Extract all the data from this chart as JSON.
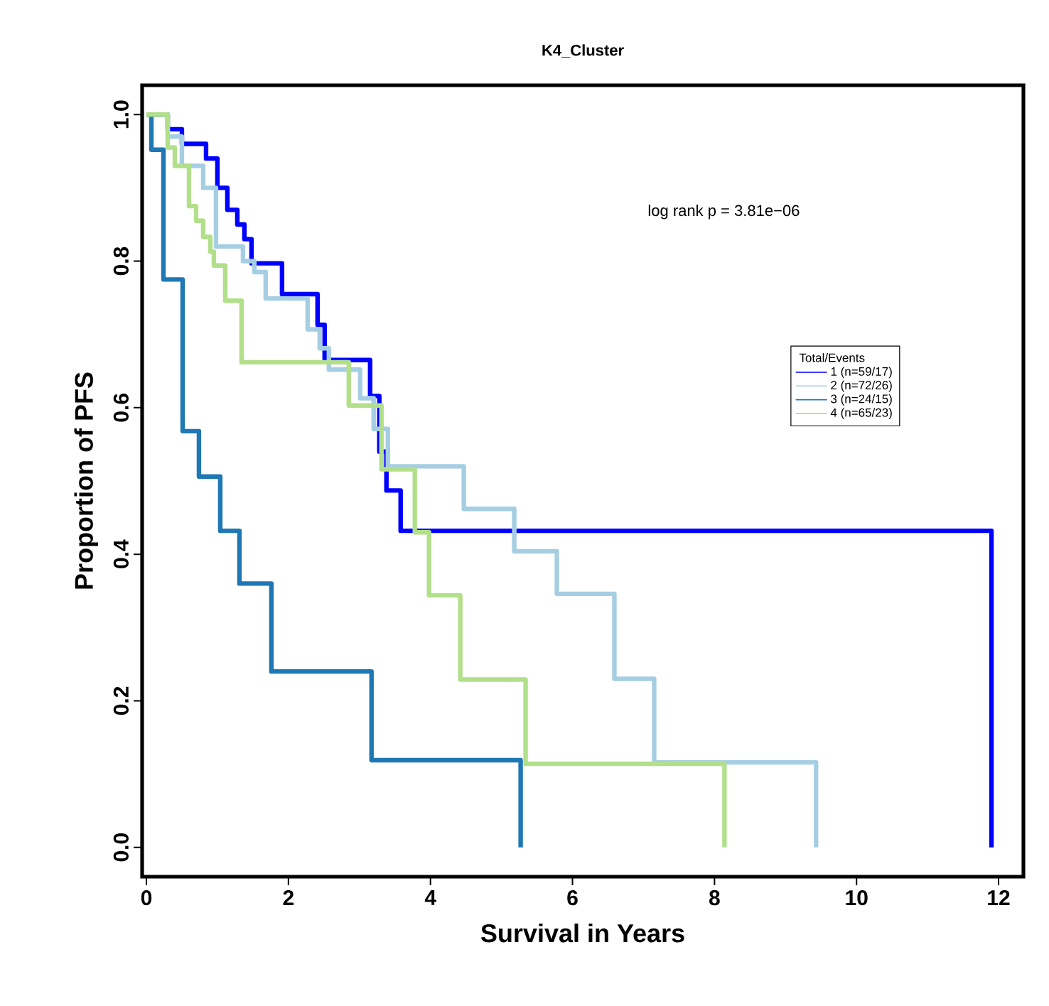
{
  "chart_data": {
    "type": "step",
    "title": "K4_Cluster",
    "xlabel": "Survival in Years",
    "ylabel": "Proportion of PFS",
    "legend_title": "Total/Events",
    "legend": "right",
    "annotations": [
      "log rank p = 3.81e−06"
    ],
    "xlim": [
      -0.06,
      12.35
    ],
    "ylim": [
      -0.04,
      1.04
    ],
    "xticks": [
      0,
      2,
      4,
      6,
      8,
      10,
      12
    ],
    "yticks": [
      {
        "value": 0,
        "label": "0.0"
      },
      {
        "value": 0.2,
        "label": "0.2"
      },
      {
        "value": 0.4,
        "label": "0.4"
      },
      {
        "value": 0.6,
        "label": "0.6"
      },
      {
        "value": 0.8,
        "label": "0.8"
      },
      {
        "value": 1,
        "label": "1.0"
      }
    ],
    "series": [
      {
        "name": "1 (n=59/17)",
        "color": "#0000ff",
        "x": [
          0,
          0.3,
          0.5,
          0.84,
          1.0,
          1.14,
          1.28,
          1.38,
          1.48,
          1.91,
          2.41,
          2.51,
          3.15,
          3.28,
          3.38,
          3.58,
          11.9
        ],
        "values": [
          1,
          0.98,
          0.96,
          0.94,
          0.9,
          0.87,
          0.85,
          0.83,
          0.797,
          0.755,
          0.713,
          0.665,
          0.616,
          0.54,
          0.487,
          0.432,
          0
        ]
      },
      {
        "name": "2 (n=72/26)",
        "color": "#a6cee3",
        "x": [
          0,
          0.3,
          0.5,
          0.8,
          0.98,
          1.36,
          1.52,
          1.68,
          2.27,
          2.44,
          2.57,
          3.01,
          3.2,
          3.4,
          4.47,
          5.18,
          5.78,
          6.59,
          7.15,
          9.43
        ],
        "values": [
          1,
          0.97,
          0.93,
          0.9,
          0.82,
          0.8,
          0.785,
          0.749,
          0.707,
          0.681,
          0.652,
          0.613,
          0.571,
          0.52,
          0.462,
          0.404,
          0.346,
          0.23,
          0.116,
          0
        ]
      },
      {
        "name": "3 (n=24/15)",
        "color": "#1f78b4",
        "x": [
          0,
          0.07,
          0.24,
          0.51,
          0.74,
          1.04,
          1.31,
          1.76,
          3.17,
          5.27
        ],
        "values": [
          1,
          0.952,
          0.775,
          0.568,
          0.506,
          0.432,
          0.36,
          0.24,
          0.119,
          0
        ]
      },
      {
        "name": "4 (n=65/23)",
        "color": "#b2df8a",
        "x": [
          0,
          0.3,
          0.4,
          0.6,
          0.7,
          0.8,
          0.9,
          0.95,
          1.11,
          1.34,
          2.85,
          3.31,
          3.78,
          3.98,
          4.42,
          5.34,
          8.14
        ],
        "values": [
          1,
          0.955,
          0.93,
          0.875,
          0.855,
          0.833,
          0.813,
          0.794,
          0.746,
          0.662,
          0.603,
          0.516,
          0.43,
          0.344,
          0.229,
          0.114,
          0
        ]
      }
    ]
  }
}
